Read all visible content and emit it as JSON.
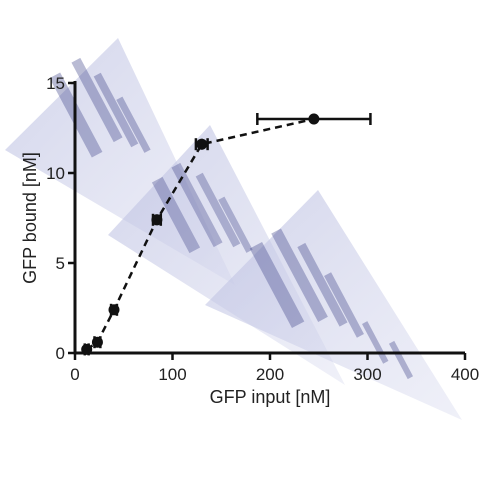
{
  "chart_data": {
    "type": "scatter",
    "title": "",
    "xlabel": "GFP input [nM]",
    "ylabel": "GFP bound [nM]",
    "xlim": [
      0,
      400
    ],
    "ylim": [
      0,
      15
    ],
    "xticks": [
      0,
      100,
      200,
      300,
      400
    ],
    "yticks": [
      0,
      5,
      10,
      15
    ],
    "x_tick_labels": [
      "0",
      "100",
      "200",
      "300",
      "400"
    ],
    "y_tick_labels": [
      "0",
      "5",
      "10",
      "15"
    ],
    "grid": false,
    "legend": "none",
    "series": [
      {
        "line_style": "dashed",
        "marker": "circle",
        "color": "#111111",
        "points": [
          {
            "x": 12,
            "y": 0.2,
            "xerr": 2,
            "yerr": 0.1
          },
          {
            "x": 23,
            "y": 0.6,
            "xerr": 3,
            "yerr": 0.2
          },
          {
            "x": 40,
            "y": 2.4,
            "xerr": 3,
            "yerr": 0.2
          },
          {
            "x": 84,
            "y": 7.4,
            "xerr": 4,
            "yerr": 0.3
          },
          {
            "x": 130,
            "y": 11.6,
            "xerr": 6,
            "yerr": 0.3
          },
          {
            "x": 245,
            "y": 13.0,
            "xerr": 58,
            "yerr": 0.3
          }
        ]
      }
    ]
  },
  "overlay": {
    "description_icon": "gel-image-overlay",
    "tint_color": "#c9cce6",
    "band_color": "#3a3f86"
  }
}
